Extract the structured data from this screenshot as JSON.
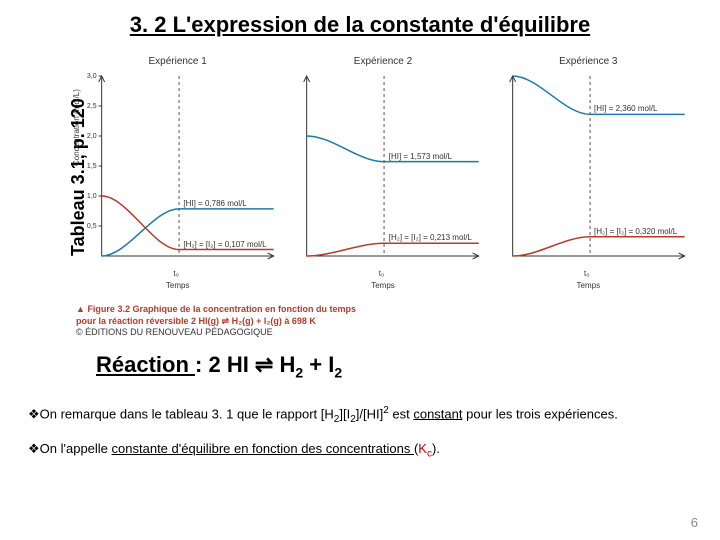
{
  "title": "3. 2 L'expression de la constante d'équilibre",
  "rotated_label": "Tableau 3.1, p. 120",
  "experiments": [
    {
      "title": "Expérience 1",
      "ylabel": "Concentration (mol/L)",
      "xlabel": "Temps",
      "t0": "t₀",
      "y_ticks": [
        "3,0",
        "2,5",
        "2,0",
        "1,5",
        "1,0",
        "0,5"
      ],
      "line_hi": {
        "color": "#1a7aa8",
        "start_y": 0.0,
        "end_y": 0.262,
        "label": "[HI] = 0,786 mol/L"
      },
      "line_h2": {
        "color": "#b83a2a",
        "start_y": 0.333,
        "end_y": 0.036,
        "label": "[H₂] = [I₂] = 0,107 mol/L"
      }
    },
    {
      "title": "Expérience 2",
      "ylabel": "",
      "xlabel": "Temps",
      "t0": "t₀",
      "y_ticks": [],
      "line_hi": {
        "color": "#1a7aa8",
        "start_y": 0.667,
        "end_y": 0.524,
        "label": "[HI] = 1,573 mol/L"
      },
      "line_h2": {
        "color": "#b83a2a",
        "start_y": 0.0,
        "end_y": 0.071,
        "label": "[H₂] = [I₂] = 0,213 mol/L"
      }
    },
    {
      "title": "Expérience 3",
      "ylabel": "",
      "xlabel": "Temps",
      "t0": "t₀",
      "y_ticks": [],
      "line_hi": {
        "color": "#1a7aa8",
        "start_y": 1.0,
        "end_y": 0.787,
        "label": "[HI] = 2,360 mol/L"
      },
      "line_h2": {
        "color": "#b83a2a",
        "start_y": 0.0,
        "end_y": 0.107,
        "label": "[H₂] = [I₂] = 0,320 mol/L"
      }
    }
  ],
  "caption": {
    "icon": "▲",
    "title": "Figure 3.2  Graphique de la concentration en fonction du temps",
    "line2": "pour la réaction réversible 2 HI(g) ⇌ H₂(g) + I₂(g) à 698 K",
    "credit": "© ÉDITIONS DU RENOUVEAU PÉDAGOGIQUE"
  },
  "reaction": {
    "label": "Réaction ",
    "rest_before": ": 2 HI  ⇌  H",
    "sub1": "2",
    "mid": " + I",
    "sub2": "2"
  },
  "bullets": [
    {
      "pre": "❖On remarque dans le tableau 3. 1 que le rapport [H",
      "s1": "2",
      "m1": "][I",
      "s2": "2",
      "m2": "]/[HI]",
      "sup": "2",
      "post": " est ",
      "u": "constant",
      "tail": " pour les trois expériences."
    },
    {
      "pre": "❖On l'appelle ",
      "u": "constante d'équilibre en fonction des concentrations ",
      "post": " (",
      "kc_k": "K",
      "kc_c": "c",
      "tail": ")."
    }
  ],
  "page_num": "6",
  "colors": {
    "axis": "#333333",
    "dash": "#555555"
  }
}
